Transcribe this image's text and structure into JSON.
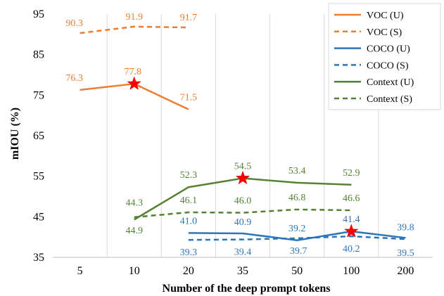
{
  "chart_data": {
    "type": "line",
    "title": "",
    "xlabel": "Number of the deep prompt tokens",
    "ylabel": "mIOU (%)",
    "categories": [
      "5",
      "10",
      "20",
      "35",
      "50",
      "100",
      "200"
    ],
    "ylim": [
      35,
      95
    ],
    "yticks": [
      "35",
      "45",
      "55",
      "65",
      "75",
      "85",
      "95"
    ],
    "grid": "vertical",
    "legend_position": "top-right",
    "series": [
      {
        "name": "VOC (U)",
        "color": "#ED7D31",
        "dash": "solid",
        "values": [
          76.3,
          77.8,
          71.5,
          null,
          null,
          null,
          null
        ],
        "labels": [
          "76.3",
          "77.8",
          "71.5",
          null,
          null,
          null,
          null
        ],
        "star_index": 1
      },
      {
        "name": "VOC (S)",
        "color": "#ED7D31",
        "dash": "dashed",
        "values": [
          90.3,
          91.9,
          91.7,
          null,
          null,
          null,
          null
        ],
        "labels": [
          "90.3",
          "91.9",
          "91.7",
          null,
          null,
          null,
          null
        ]
      },
      {
        "name": "COCO (U)",
        "color": "#2E75B6",
        "dash": "solid",
        "values": [
          null,
          null,
          41.0,
          40.9,
          39.2,
          41.4,
          39.8
        ],
        "labels": [
          null,
          null,
          "41.0",
          "40.9",
          "39.2",
          "41.4",
          "39.8"
        ],
        "star_index": 5
      },
      {
        "name": "COCO (S)",
        "color": "#2E75B6",
        "dash": "dashed",
        "values": [
          null,
          null,
          39.3,
          39.4,
          39.7,
          40.2,
          39.5
        ],
        "labels": [
          null,
          null,
          "39.3",
          "39.4",
          "39.7",
          "40.2",
          "39.5"
        ]
      },
      {
        "name": "Context (U)",
        "color": "#548235",
        "dash": "solid",
        "values": [
          null,
          44.3,
          52.3,
          54.5,
          53.4,
          52.9,
          null
        ],
        "labels": [
          null,
          "44.3",
          "52.3",
          "54.5",
          "53.4",
          "52.9",
          null
        ],
        "star_index": 3
      },
      {
        "name": "Context (S)",
        "color": "#548235",
        "dash": "dashed",
        "values": [
          null,
          44.9,
          46.1,
          46.0,
          46.8,
          46.6,
          null
        ],
        "labels": [
          null,
          "44.9",
          "46.1",
          "46.0",
          "46.8",
          "46.6",
          null
        ]
      }
    ]
  }
}
